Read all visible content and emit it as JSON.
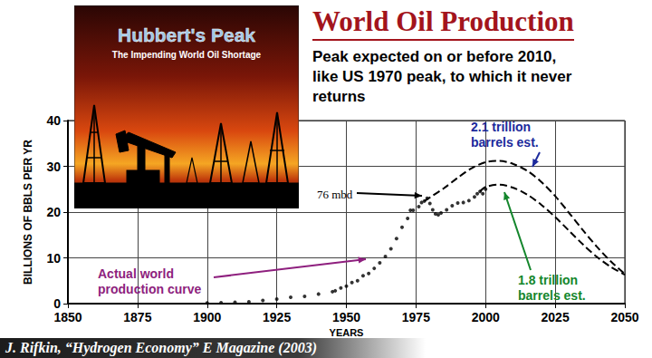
{
  "title_note_free": null,
  "cover": {
    "title": "Hubbert's Peak",
    "subtitle": "The Impending World Oil Shortage"
  },
  "source": "J. Rifkin, “Hydrogen Economy” E Magazine (2003)",
  "chart_data": {
    "type": "line",
    "title": "World Oil Production",
    "subtitle": "Peak expected on or before 2010, like US 1970 peak, to which it never returns",
    "x_label": "YEARS",
    "y_label": "BILLIONS OF BBLS PER YR",
    "xlim": [
      1850,
      2050
    ],
    "xticks": [
      1850,
      1875,
      1900,
      1925,
      1950,
      1975,
      2000,
      2025,
      2050
    ],
    "ylim": [
      0,
      40
    ],
    "yticks": [
      0,
      10,
      20,
      30,
      40
    ],
    "grid": true,
    "series": [
      {
        "name": "Actual world production curve",
        "type": "scatter",
        "marker": "circle",
        "color": "#000000",
        "x": [
          1900,
          1905,
          1910,
          1915,
          1920,
          1925,
          1930,
          1935,
          1940,
          1945,
          1946,
          1948,
          1950,
          1952,
          1954,
          1956,
          1958,
          1960,
          1962,
          1964,
          1966,
          1968,
          1970,
          1972,
          1973,
          1974,
          1976,
          1977,
          1978,
          1979,
          1980,
          1981,
          1982,
          1983,
          1984,
          1986,
          1988,
          1990,
          1992,
          1994,
          1996,
          1997,
          1998,
          1999,
          2000
        ],
        "values": [
          0.15,
          0.2,
          0.3,
          0.4,
          0.7,
          1.0,
          1.4,
          1.6,
          2.1,
          2.6,
          2.8,
          3.4,
          3.8,
          4.6,
          5.0,
          6.1,
          6.6,
          7.7,
          8.9,
          10.3,
          12.0,
          14.2,
          16.7,
          18.6,
          20.4,
          20.4,
          21.2,
          22.1,
          22.4,
          23.0,
          21.9,
          20.5,
          19.6,
          19.4,
          19.8,
          20.5,
          21.4,
          22.0,
          22.1,
          22.5,
          23.3,
          24.0,
          24.5,
          24.0,
          25.0
        ]
      },
      {
        "name": "2.1 trillion barrels est.",
        "type": "line",
        "marker": "none",
        "line_style": "dashed",
        "color": "#000000",
        "x": [
          1978,
          1980,
          1985,
          1990,
          1995,
          2000,
          2005,
          2010,
          2015,
          2020,
          2025,
          2030,
          2035,
          2040,
          2045,
          2050
        ],
        "values": [
          22.4,
          23.2,
          25.2,
          27.5,
          29.6,
          30.9,
          31.2,
          30.5,
          29.0,
          26.6,
          23.5,
          19.8,
          16.0,
          12.4,
          9.2,
          6.5
        ]
      },
      {
        "name": "1.8 trillion barrels est.",
        "type": "line",
        "marker": "none",
        "line_style": "dashed",
        "color": "#000000",
        "x": [
          1998,
          2000,
          2005,
          2010,
          2015,
          2020,
          2025,
          2030,
          2035,
          2040,
          2045,
          2050
        ],
        "values": [
          24.5,
          25.5,
          26.0,
          25.3,
          23.8,
          21.6,
          18.9,
          15.9,
          12.9,
          10.2,
          8.0,
          6.3
        ]
      }
    ],
    "annotations": [
      {
        "text": "76 mbd",
        "color": "#000000"
      },
      {
        "text": "Actual world production curve",
        "color": "#8e1f7e"
      },
      {
        "text": "2.1 trillion barrels est.",
        "color": "#1c2a9c"
      },
      {
        "text": "1.8 trillion barrels est.",
        "color": "#14862c"
      }
    ]
  }
}
